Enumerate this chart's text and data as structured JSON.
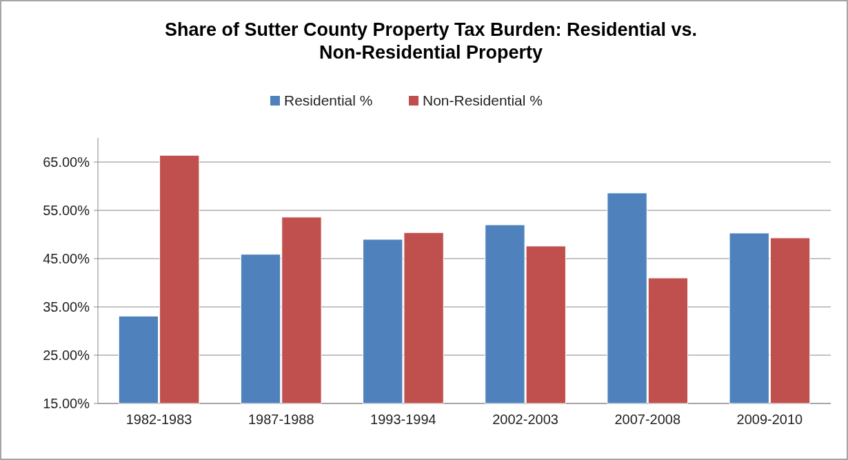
{
  "chart_data": {
    "type": "bar",
    "title": "Share of Sutter County Property Tax Burden: Residential vs. Non-Residential Property",
    "categories": [
      "1982-1983",
      "1987-1988",
      "1993-1994",
      "2002-2003",
      "2007-2008",
      "2009-2010"
    ],
    "series": [
      {
        "name": "Residential %",
        "color": "#4f81bd",
        "values": [
          33.1,
          45.9,
          49.0,
          52.0,
          58.6,
          50.3
        ]
      },
      {
        "name": "Non-Residential %",
        "color": "#c0504d",
        "values": [
          66.4,
          53.6,
          50.4,
          47.6,
          41.0,
          49.3
        ]
      }
    ],
    "ylim": [
      15,
      70
    ],
    "yticks": [
      {
        "value": 15,
        "label": "15.00%"
      },
      {
        "value": 25,
        "label": "25.00%"
      },
      {
        "value": 35,
        "label": "35.00%"
      },
      {
        "value": 45,
        "label": "45.00%"
      },
      {
        "value": 55,
        "label": "55.00%"
      },
      {
        "value": 65,
        "label": "65.00%"
      }
    ],
    "grid": "y",
    "legend": "top"
  }
}
